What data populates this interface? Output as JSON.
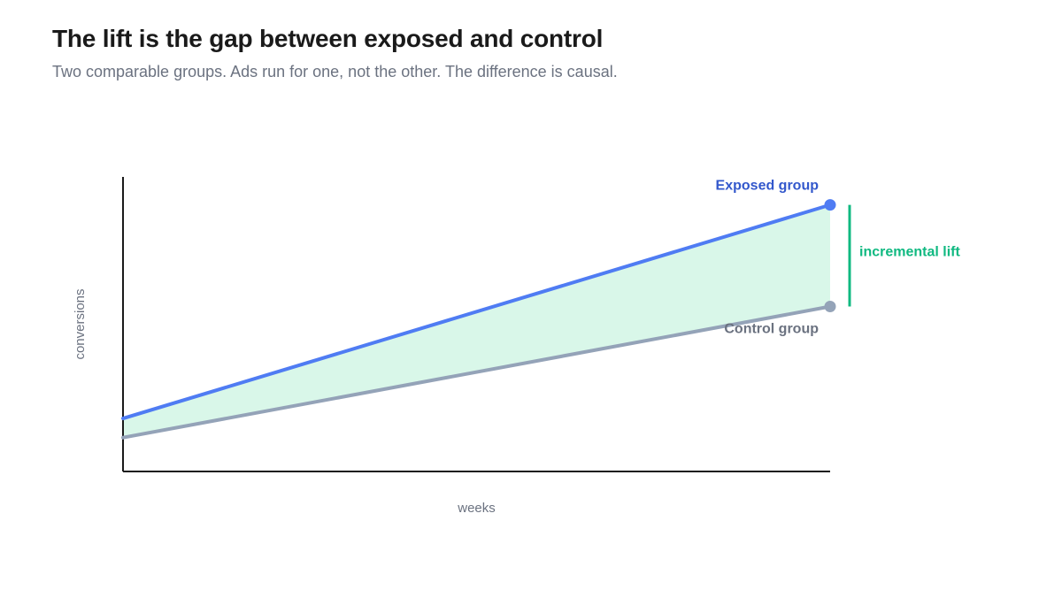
{
  "header": {
    "title": "The lift is the gap between exposed and control",
    "subtitle": "Two comparable groups. Ads run for one, not the other. The difference is causal."
  },
  "chart_data": {
    "type": "line",
    "xlabel": "weeks",
    "ylabel": "conversions",
    "xlim": [
      0,
      1
    ],
    "ylim": [
      0,
      1
    ],
    "grid": false,
    "series": [
      {
        "name": "Exposed group",
        "color": "#4f7cf3",
        "label_color": "#3358cc",
        "x": [
          0,
          1
        ],
        "values": [
          0.18,
          0.905
        ]
      },
      {
        "name": "Control group",
        "color": "#94a3b8",
        "label_color": "#6b7280",
        "x": [
          0,
          1
        ],
        "values": [
          0.115,
          0.56
        ]
      }
    ],
    "annotations": [
      {
        "text": "incremental lift",
        "color": "#10b981"
      }
    ],
    "fill_between": {
      "color": "#d9f7e9"
    }
  }
}
